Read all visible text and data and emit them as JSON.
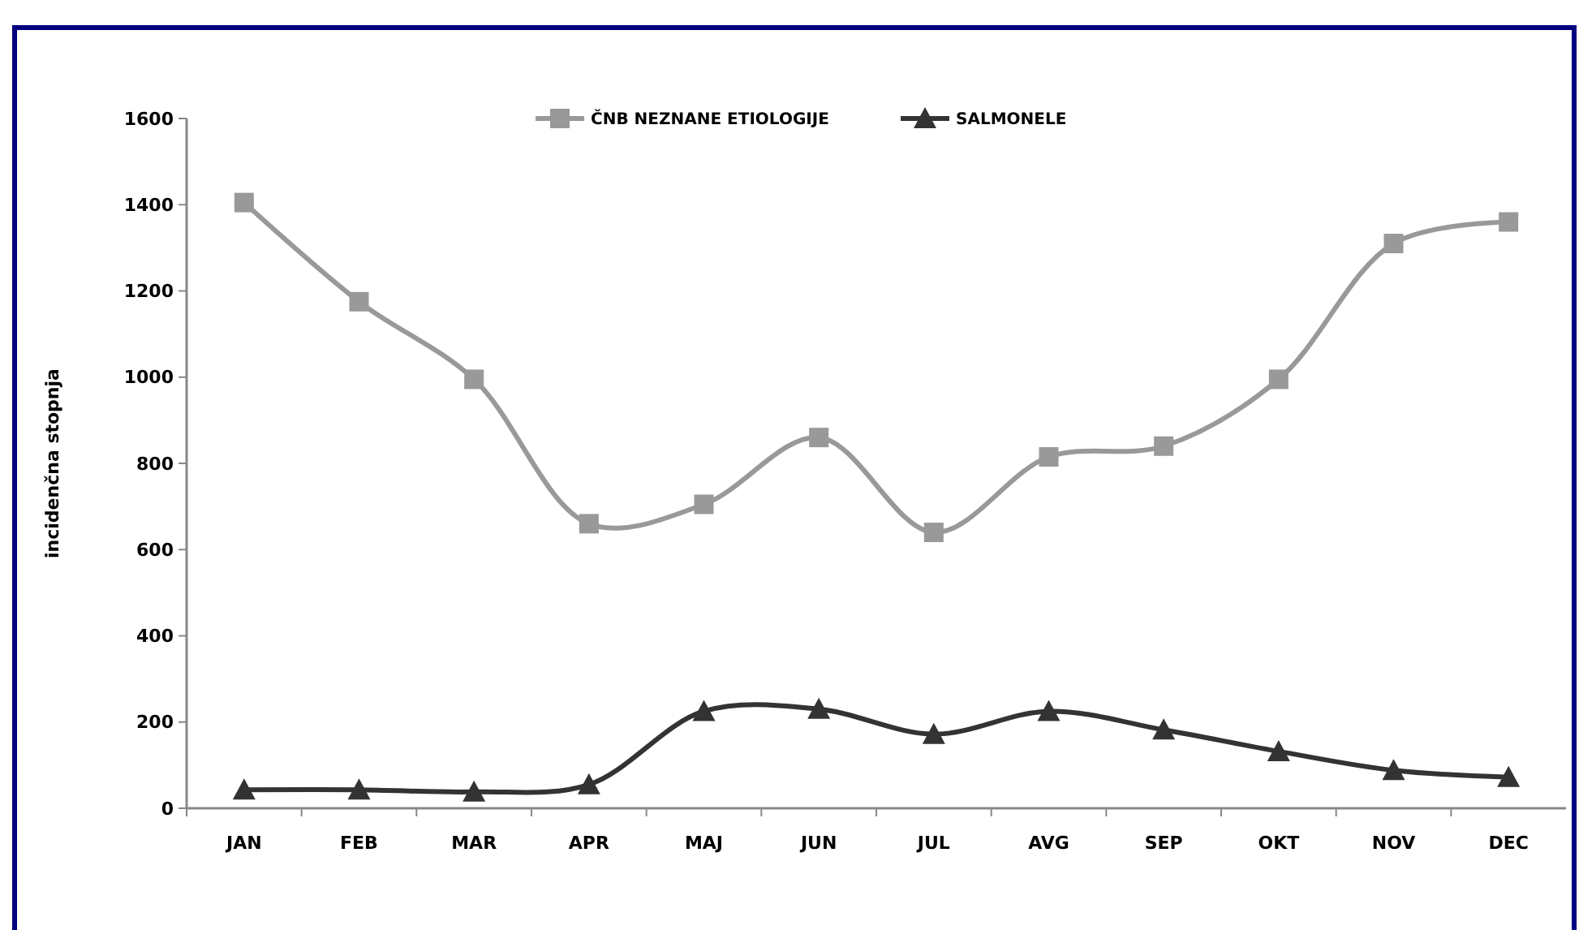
{
  "chart_data": {
    "type": "line",
    "ylabel": "incidenčna stopnja",
    "categories": [
      "JAN",
      "FEB",
      "MAR",
      "APR",
      "MAJ",
      "JUN",
      "JUL",
      "AVG",
      "SEP",
      "OKT",
      "NOV",
      "DEC"
    ],
    "series": [
      {
        "name": "ČNB NEZNANE ETIOLOGIJE",
        "color": "#999999",
        "marker": "square",
        "values": [
          1405,
          1175,
          995,
          660,
          705,
          860,
          640,
          815,
          840,
          995,
          1310,
          1360
        ]
      },
      {
        "name": "SALMONELE",
        "color": "#333333",
        "marker": "triangle",
        "values": [
          43,
          43,
          38,
          55,
          225,
          230,
          172,
          225,
          182,
          132,
          88,
          72
        ]
      }
    ],
    "ylim": [
      0,
      1600
    ],
    "yticks": [
      0,
      200,
      400,
      600,
      800,
      1000,
      1200,
      1400,
      1600
    ],
    "grid": false,
    "legend": "top"
  }
}
